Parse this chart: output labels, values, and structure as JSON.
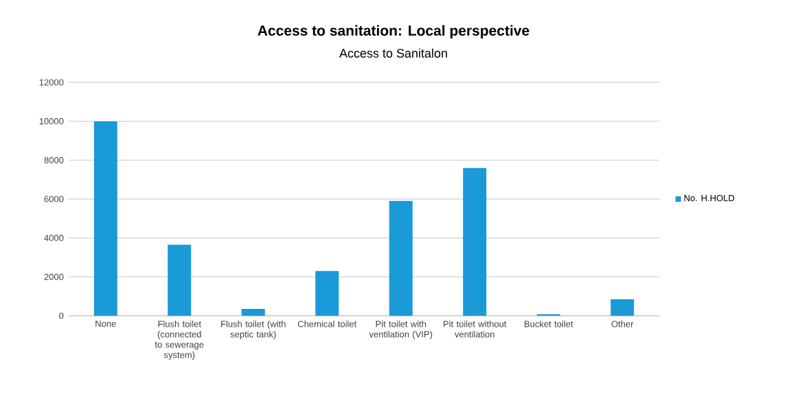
{
  "chart_data": {
    "type": "bar",
    "title": "Access to sanitation: Local perspective",
    "subtitle": "Access to Sanitalon",
    "categories": [
      "None",
      "Flush toilet (connected to sewerage system)",
      "Flush toilet (with septic tank)",
      "Chemical toilet",
      "Pit toilet with ventilation (VIP)",
      "Pit toilet without ventilation",
      "Bucket toilet",
      "Other"
    ],
    "series": [
      {
        "name": "No. H.HOLD",
        "color": "#1a9ad6",
        "values": [
          10000,
          3650,
          350,
          2300,
          5900,
          7600,
          80,
          850
        ]
      }
    ],
    "ylim": [
      0,
      12000
    ],
    "yticks": [
      0,
      2000,
      4000,
      6000,
      8000,
      10000,
      12000
    ],
    "grid": "y",
    "legend": "right"
  }
}
